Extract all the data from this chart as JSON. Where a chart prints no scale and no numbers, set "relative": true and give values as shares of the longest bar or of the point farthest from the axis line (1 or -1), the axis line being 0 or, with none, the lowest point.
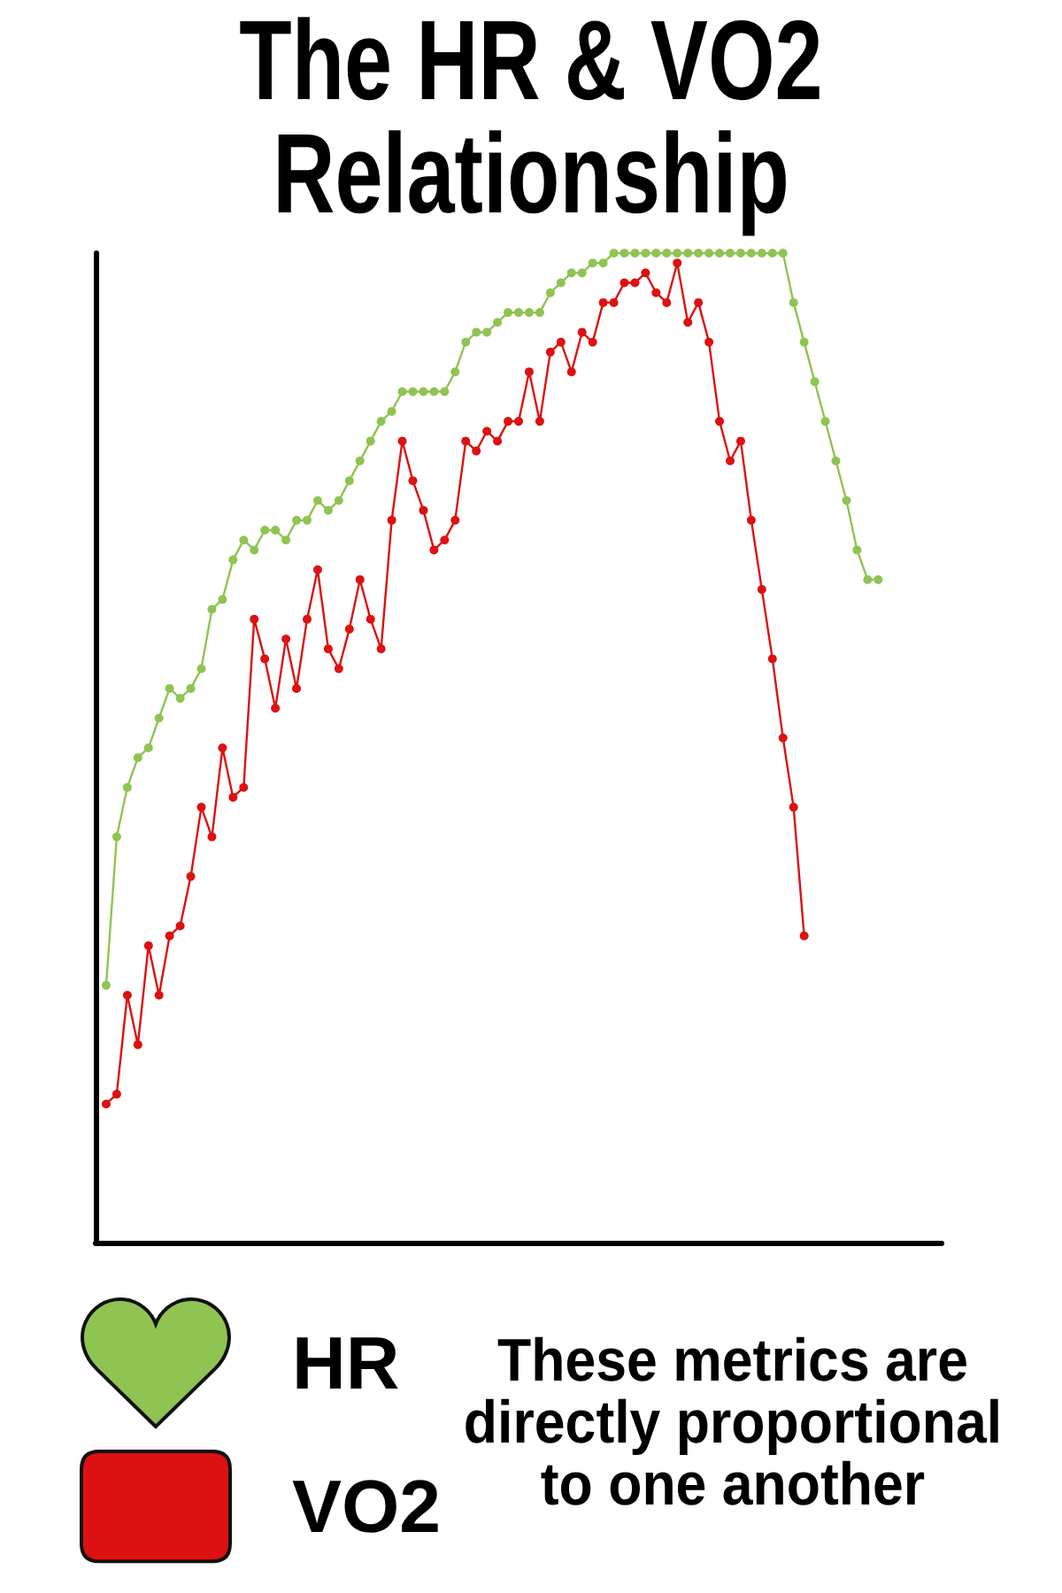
{
  "chart_data": {
    "type": "line",
    "title": "The HR & VO2 Relationship",
    "annotations": [
      "These metrics are directly proportional to one another"
    ],
    "relative": true,
    "categories": [
      null,
      null,
      null,
      null,
      null,
      null,
      null,
      null,
      null,
      null,
      null,
      null,
      null,
      null,
      null,
      null,
      null,
      null,
      null,
      null,
      null,
      null,
      null,
      null,
      null,
      null,
      null,
      null,
      null,
      null,
      null,
      null,
      null,
      null,
      null,
      null,
      null,
      null,
      null,
      null,
      null,
      null,
      null,
      null,
      null,
      null,
      null,
      null,
      null,
      null,
      null,
      null,
      null,
      null,
      null,
      null,
      null,
      null,
      null,
      null,
      null,
      null,
      null,
      null,
      null,
      null,
      null,
      null,
      null,
      null,
      null,
      null,
      null,
      null,
      null,
      null,
      null,
      null,
      null,
      null,
      null
    ],
    "series": [
      {
        "name": "HR",
        "color": "#8fc452",
        "values": [
          null,
          0.26,
          0.41,
          0.46,
          0.49,
          0.5,
          0.53,
          0.56,
          0.55,
          0.56,
          0.58,
          0.64,
          0.65,
          0.69,
          0.71,
          0.7,
          0.72,
          0.72,
          0.71,
          0.73,
          0.73,
          0.75,
          0.74,
          0.75,
          0.77,
          0.79,
          0.81,
          0.83,
          0.84,
          0.86,
          0.86,
          0.86,
          0.86,
          0.86,
          0.88,
          0.91,
          0.92,
          0.92,
          0.93,
          0.94,
          0.94,
          0.94,
          0.94,
          0.96,
          0.97,
          0.98,
          0.98,
          0.99,
          0.99,
          1,
          1,
          1,
          1,
          1,
          1,
          1,
          1,
          1,
          1,
          1,
          1,
          1,
          1,
          1,
          1,
          1,
          0.95,
          0.91,
          0.87,
          0.83,
          0.79,
          0.75,
          0.7,
          0.67,
          0.67,
          null,
          null,
          null,
          null,
          null,
          null
        ]
      },
      {
        "name": "VO2",
        "color": "#dd1111",
        "values": [
          null,
          0.14,
          0.15,
          0.25,
          0.2,
          0.3,
          0.25,
          0.31,
          0.32,
          0.37,
          0.44,
          0.41,
          0.5,
          0.45,
          0.46,
          0.63,
          0.59,
          0.54,
          0.61,
          0.56,
          0.63,
          0.68,
          0.6,
          0.58,
          0.62,
          0.67,
          0.63,
          0.6,
          0.73,
          0.81,
          0.77,
          0.74,
          0.7,
          0.71,
          0.73,
          0.81,
          0.8,
          0.82,
          0.81,
          0.83,
          0.83,
          0.88,
          0.83,
          0.9,
          0.91,
          0.88,
          0.92,
          0.91,
          0.95,
          0.95,
          0.97,
          0.97,
          0.98,
          0.96,
          0.95,
          0.99,
          0.93,
          0.95,
          0.91,
          0.83,
          0.79,
          0.81,
          0.73,
          0.66,
          0.59,
          0.51,
          0.44,
          0.31,
          null,
          null,
          null,
          null,
          null,
          null,
          null,
          null,
          null,
          null,
          null,
          null,
          null
        ]
      }
    ],
    "marker": "circle",
    "line_style": "solid",
    "legend": "bottom left"
  }
}
